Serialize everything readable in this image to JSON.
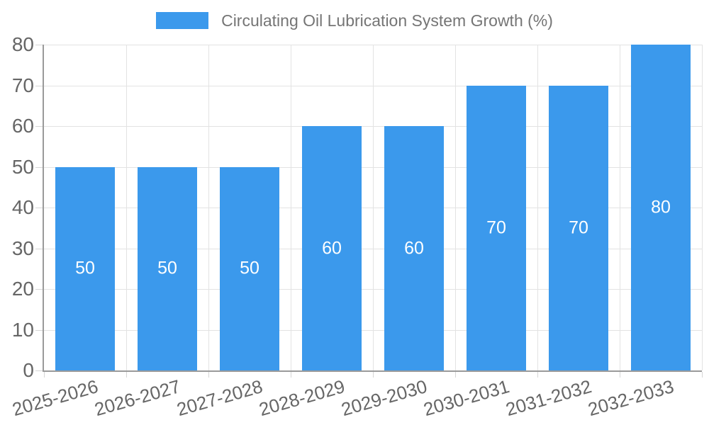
{
  "chart_data": {
    "type": "bar",
    "title": "Circulating Oil Lubrication System Growth (%)",
    "categories": [
      "2025-2026",
      "2026-2027",
      "2027-2028",
      "2028-2029",
      "2029-2030",
      "2030-2031",
      "2031-2032",
      "2032-2033"
    ],
    "values": [
      50,
      50,
      50,
      60,
      60,
      70,
      70,
      80
    ],
    "value_labels": [
      "50",
      "50",
      "50",
      "60",
      "60",
      "70",
      "70",
      "80"
    ],
    "xlabel": "",
    "ylabel": "",
    "ylim": [
      0,
      80
    ],
    "y_ticks": [
      0,
      10,
      20,
      30,
      40,
      50,
      60,
      70,
      80
    ],
    "grid": true,
    "legend_position": "top"
  },
  "colors": {
    "bar": "#3b99ec",
    "bar_label": "#ffffff",
    "grid_line": "#e3e3e3",
    "tick_mark": "#d6d6d6",
    "axis_line": "#9a9a9a",
    "tick_label": "#666666",
    "legend_text": "#757575",
    "background": "#ffffff"
  }
}
